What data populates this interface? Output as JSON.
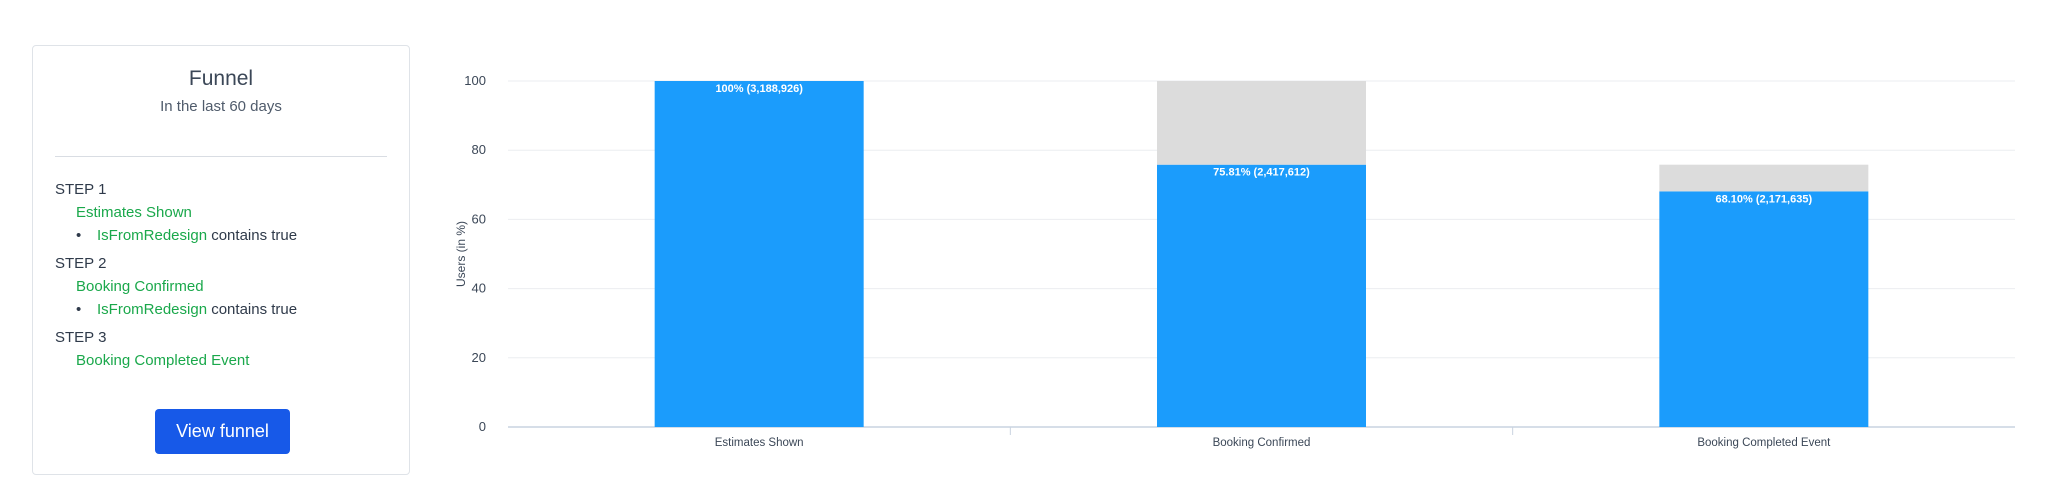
{
  "funnel_card": {
    "title": "Funnel",
    "subtitle": "In the last 60 days",
    "steps": [
      {
        "label": "STEP 1",
        "event": "Estimates Shown",
        "filter": {
          "property": "IsFromRedesign",
          "operator": "contains",
          "value": "true"
        }
      },
      {
        "label": "STEP 2",
        "event": "Booking Confirmed",
        "filter": {
          "property": "IsFromRedesign",
          "operator": "contains",
          "value": "true"
        }
      },
      {
        "label": "STEP 3",
        "event": "Booking Completed Event"
      }
    ],
    "button_label": "View funnel"
  },
  "chart_data": {
    "type": "bar",
    "stacked": true,
    "ylabel": "Users (in %)",
    "xlabel": "",
    "ylim": [
      0,
      100
    ],
    "yticks": [
      0,
      20,
      40,
      60,
      80,
      100
    ],
    "categories": [
      "Estimates Shown",
      "Booking Confirmed",
      "Booking Completed Event"
    ],
    "series": [
      {
        "values": [
          100,
          75.81,
          68.1
        ],
        "color": "#1b9cfc"
      },
      {
        "values": [
          0,
          24.19,
          7.71
        ],
        "color": "#dcdcdc"
      }
    ],
    "data_labels": [
      "100% (3,188,926)",
      "75.81% (2,417,612)",
      "68.10% (2,171,635)"
    ],
    "grid": true,
    "legend": "none"
  }
}
